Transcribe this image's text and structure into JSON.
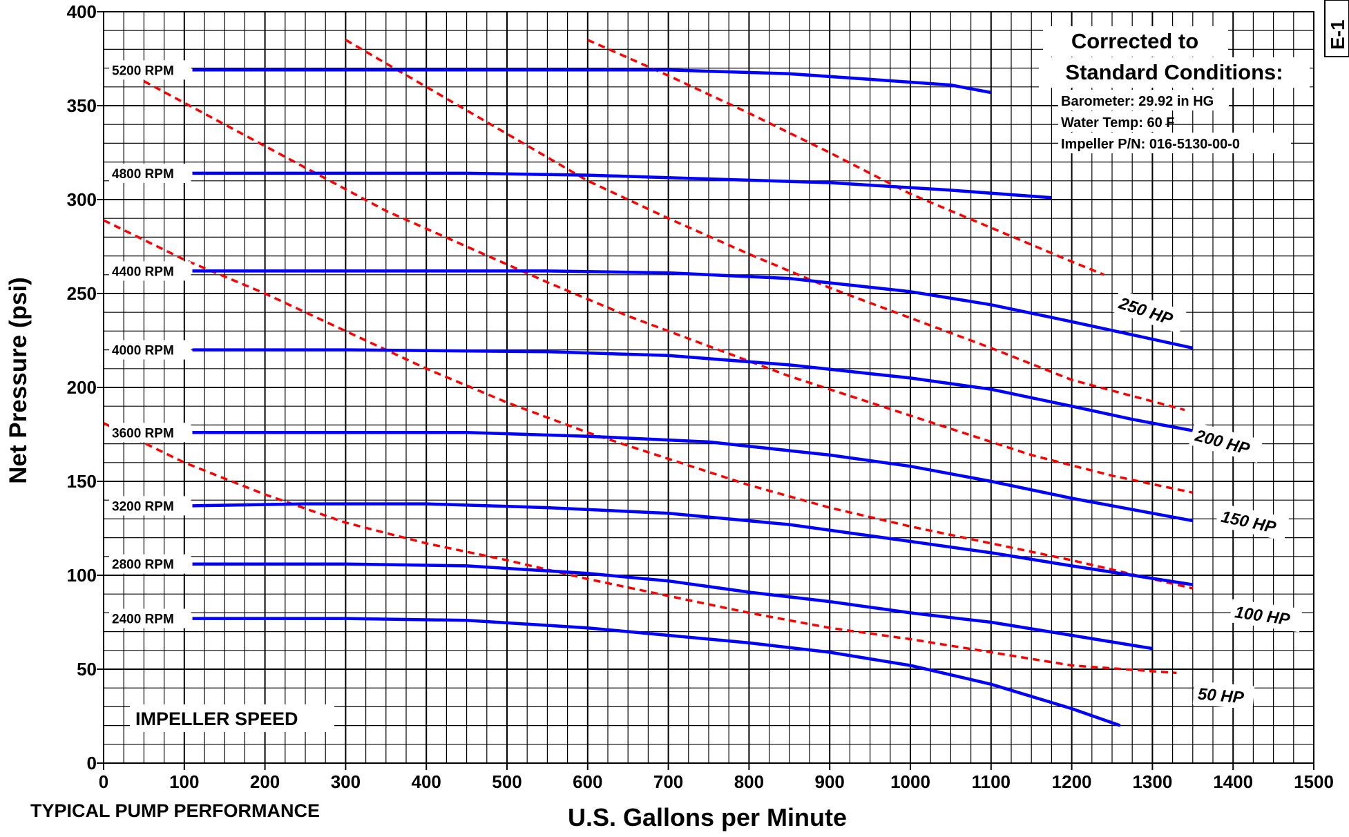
{
  "chart_data": {
    "type": "line",
    "title": "TYPICAL PUMP PERFORMANCE",
    "xlabel": "U.S. Gallons per Minute",
    "ylabel": "Net Pressure (psi)",
    "xlim": [
      0,
      1500
    ],
    "ylim": [
      0,
      400
    ],
    "xticks": [
      "0",
      "100",
      "200",
      "300",
      "400",
      "500",
      "600",
      "700",
      "800",
      "900",
      "1000",
      "1100",
      "1200",
      "1300",
      "1400",
      "1500"
    ],
    "yticks": [
      "0",
      "50",
      "100",
      "150",
      "200",
      "250",
      "300",
      "350",
      "400"
    ],
    "grid": true,
    "corner_label": "E-1",
    "impeller_label": "IMPELLER SPEED",
    "standard_conditions": {
      "heading_line1": "Corrected to",
      "heading_line2": "Standard Conditions:",
      "lines": [
        "Barometer: 29.92 in HG",
        "Water Temp: 60 F",
        "Impeller P/N: 016-5130-00-0"
      ]
    },
    "speed_series": [
      {
        "name": "5200 RPM",
        "color": "#0000ff",
        "x": [
          110,
          300,
          500,
          700,
          850,
          950,
          1050,
          1100
        ],
        "y": [
          369,
          369,
          369,
          369,
          367,
          364,
          361,
          357
        ]
      },
      {
        "name": "4800 RPM",
        "color": "#0000ff",
        "x": [
          110,
          300,
          450,
          600,
          750,
          900,
          1050,
          1175
        ],
        "y": [
          314,
          314,
          314,
          313,
          311,
          309,
          305,
          301
        ]
      },
      {
        "name": "4400 RPM",
        "color": "#0000ff",
        "x": [
          110,
          300,
          550,
          700,
          850,
          1000,
          1100,
          1200,
          1275,
          1350
        ],
        "y": [
          262,
          262,
          262,
          261,
          258,
          251,
          244,
          235,
          228,
          221
        ]
      },
      {
        "name": "4000 RPM",
        "color": "#0000ff",
        "x": [
          110,
          300,
          550,
          700,
          850,
          1000,
          1100,
          1200,
          1275,
          1350
        ],
        "y": [
          220,
          220,
          219,
          217,
          212,
          205,
          199,
          190,
          183,
          177
        ]
      },
      {
        "name": "3600 RPM",
        "color": "#0000ff",
        "x": [
          110,
          250,
          450,
          600,
          750,
          900,
          1000,
          1100,
          1200,
          1275,
          1350
        ],
        "y": [
          176,
          176,
          176,
          174,
          171,
          164,
          158,
          150,
          141,
          135,
          129
        ]
      },
      {
        "name": "3200 RPM",
        "color": "#0000ff",
        "x": [
          110,
          250,
          400,
          550,
          700,
          850,
          1000,
          1100,
          1200,
          1275,
          1350
        ],
        "y": [
          137,
          138,
          138,
          136,
          133,
          127,
          118,
          112,
          105,
          100,
          95
        ]
      },
      {
        "name": "2800 RPM",
        "color": "#0000ff",
        "x": [
          110,
          300,
          450,
          600,
          700,
          800,
          900,
          1000,
          1100,
          1200,
          1300
        ],
        "y": [
          106,
          106,
          105,
          101,
          97,
          91,
          86,
          80,
          75,
          68,
          61
        ]
      },
      {
        "name": "2400 RPM",
        "color": "#0000ff",
        "x": [
          110,
          300,
          450,
          600,
          700,
          800,
          900,
          1000,
          1100,
          1200,
          1260
        ],
        "y": [
          77,
          77,
          76,
          72,
          68,
          64,
          59,
          52,
          42,
          29,
          20
        ]
      }
    ],
    "power_series": [
      {
        "name": "250 HP",
        "color": "#ff0000",
        "x": [
          600,
          700,
          800,
          900,
          1000,
          1100,
          1200,
          1240
        ],
        "y": [
          385,
          366,
          346,
          325,
          303,
          285,
          267,
          260
        ]
      },
      {
        "name": "200 HP",
        "color": "#ff0000",
        "x": [
          300,
          400,
          500,
          600,
          700,
          800,
          900,
          1000,
          1100,
          1200,
          1340
        ],
        "y": [
          385,
          360,
          335,
          310,
          290,
          271,
          253,
          237,
          221,
          204,
          188
        ]
      },
      {
        "name": "150 HP",
        "color": "#ff0000",
        "x": [
          50,
          150,
          250,
          350,
          450,
          550,
          650,
          750,
          850,
          950,
          1050,
          1150,
          1250,
          1350
        ],
        "y": [
          363,
          340,
          317,
          294,
          275,
          256,
          238,
          222,
          206,
          192,
          178,
          164,
          153,
          144
        ]
      },
      {
        "name": "100 HP",
        "color": "#ff0000",
        "x": [
          0,
          100,
          200,
          300,
          400,
          500,
          600,
          700,
          800,
          900,
          1000,
          1100,
          1200,
          1350
        ],
        "y": [
          289,
          268,
          250,
          230,
          210,
          192,
          176,
          162,
          148,
          136,
          126,
          117,
          108,
          93
        ]
      },
      {
        "name": "50 HP",
        "color": "#ff0000",
        "x": [
          0,
          100,
          200,
          300,
          400,
          500,
          600,
          700,
          800,
          900,
          1000,
          1100,
          1200,
          1330
        ],
        "y": [
          181,
          160,
          143,
          128,
          117,
          108,
          98,
          89,
          80,
          72,
          66,
          59,
          52,
          48
        ]
      }
    ]
  }
}
